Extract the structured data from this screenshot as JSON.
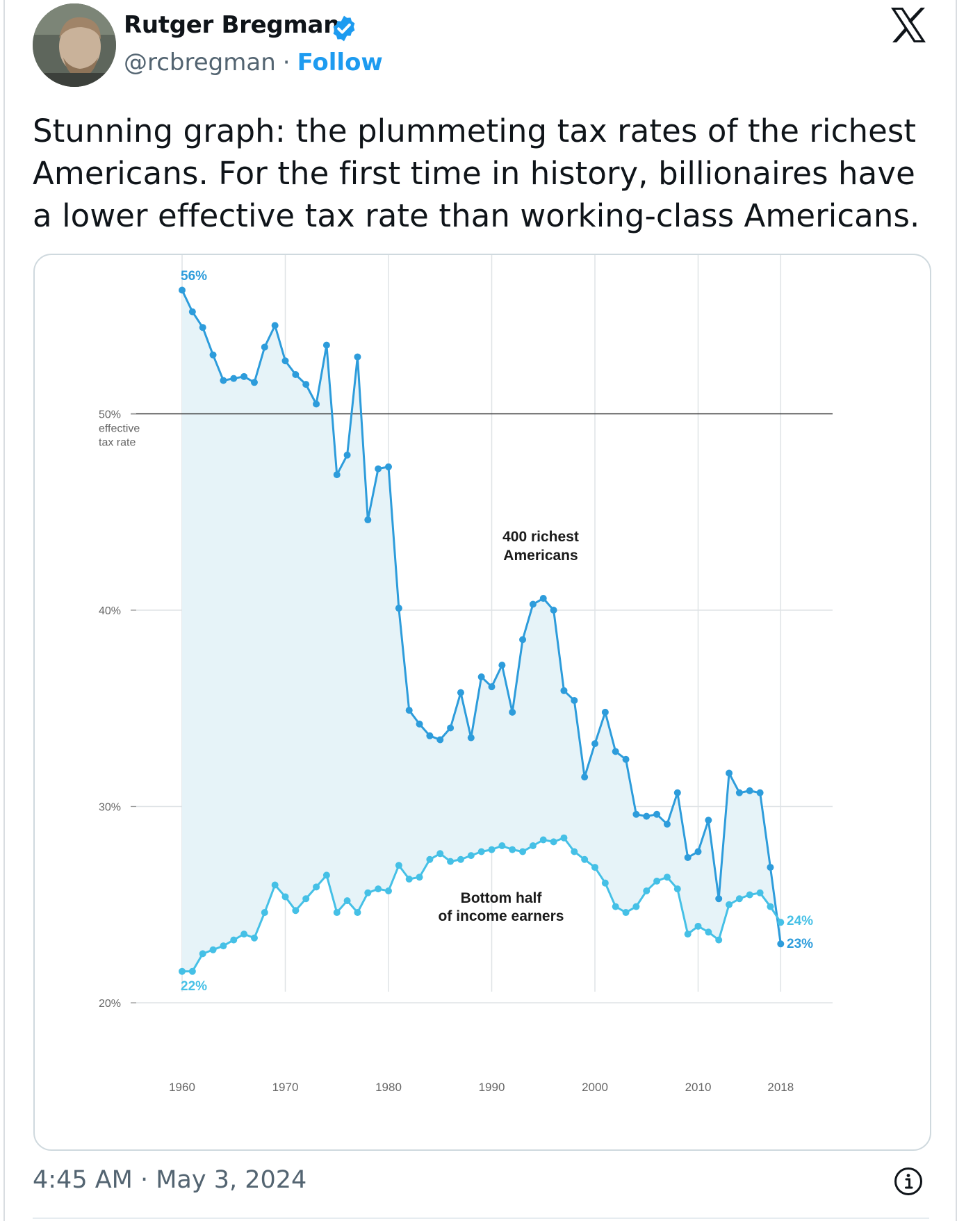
{
  "author": {
    "name": "Rutger Bregman",
    "handle": "@rcbregman",
    "separator": "·",
    "follow_label": "Follow"
  },
  "tweet": {
    "text": "Stunning graph: the plummeting tax rates of the richest Americans. For the first time in history, billionaires have a lower effective tax rate than working-class Americans."
  },
  "footer": {
    "timestamp": "4:45 AM · May 3, 2024"
  },
  "icons": {
    "verified": "verified-badge-icon",
    "brand": "x-logo-icon",
    "info": "info-icon"
  },
  "colors": {
    "follow": "#1d9bf0",
    "rich_series": "#2d9cdb",
    "bottom_series": "#45c0e6",
    "fill": "#e6f3f8"
  },
  "chart_data": {
    "type": "line",
    "x": [
      1960,
      1961,
      1962,
      1963,
      1964,
      1965,
      1966,
      1967,
      1968,
      1969,
      1970,
      1971,
      1972,
      1973,
      1974,
      1975,
      1976,
      1977,
      1978,
      1979,
      1980,
      1981,
      1982,
      1983,
      1984,
      1985,
      1986,
      1987,
      1988,
      1989,
      1990,
      1991,
      1992,
      1993,
      1994,
      1995,
      1996,
      1997,
      1998,
      1999,
      2000,
      2001,
      2002,
      2003,
      2004,
      2005,
      2006,
      2007,
      2008,
      2009,
      2010,
      2011,
      2012,
      2013,
      2014,
      2015,
      2016,
      2017,
      2018
    ],
    "series": [
      {
        "name": "400 richest Americans",
        "label": [
          "400 richest",
          "Americans"
        ],
        "values": [
          56.3,
          55.2,
          54.4,
          53.0,
          51.7,
          51.8,
          51.9,
          51.6,
          53.4,
          54.5,
          52.7,
          52.0,
          51.5,
          50.5,
          53.5,
          46.9,
          47.9,
          52.9,
          44.6,
          47.2,
          47.3,
          40.1,
          34.9,
          34.2,
          33.6,
          33.4,
          34.0,
          35.8,
          33.5,
          36.6,
          36.1,
          37.2,
          34.8,
          38.5,
          40.3,
          40.6,
          40.0,
          35.9,
          35.4,
          31.5,
          33.2,
          34.8,
          32.8,
          32.4,
          29.6,
          29.5,
          29.6,
          29.1,
          30.7,
          27.4,
          27.7,
          29.3,
          25.3,
          31.7,
          30.7,
          30.8,
          30.7,
          26.9,
          23.0
        ]
      },
      {
        "name": "Bottom half of income earners",
        "label": [
          "Bottom half",
          "of income earners"
        ],
        "values": [
          21.6,
          21.6,
          22.5,
          22.7,
          22.9,
          23.2,
          23.5,
          23.3,
          24.6,
          26.0,
          25.4,
          24.7,
          25.3,
          25.9,
          26.5,
          24.6,
          25.2,
          24.6,
          25.6,
          25.8,
          25.7,
          27.0,
          26.3,
          26.4,
          27.3,
          27.6,
          27.2,
          27.3,
          27.5,
          27.7,
          27.8,
          28.0,
          27.8,
          27.7,
          28.0,
          28.3,
          28.2,
          28.4,
          27.7,
          27.3,
          26.9,
          26.1,
          24.9,
          24.6,
          24.9,
          25.7,
          26.2,
          26.4,
          25.8,
          23.5,
          23.9,
          23.6,
          23.2,
          25.0,
          25.3,
          25.5,
          25.6,
          24.9,
          24.1
        ]
      }
    ],
    "xticks": [
      "1960",
      "1970",
      "1980",
      "1990",
      "2000",
      "2010",
      "2018"
    ],
    "yticks": [
      {
        "value": 50,
        "label": [
          "50%",
          "effective",
          "tax rate"
        ]
      },
      {
        "value": 40,
        "label": [
          "40%"
        ]
      },
      {
        "value": 30,
        "label": [
          "30%"
        ]
      },
      {
        "value": 20,
        "label": [
          "20%"
        ]
      }
    ],
    "annotations": {
      "rich_start": "56%",
      "bottom_start": "22%",
      "bottom_end": "24%",
      "rich_end": "23%"
    },
    "ylim": [
      20,
      56
    ],
    "xlim": [
      1960,
      2018
    ],
    "reference_line": 50,
    "grid": true
  }
}
